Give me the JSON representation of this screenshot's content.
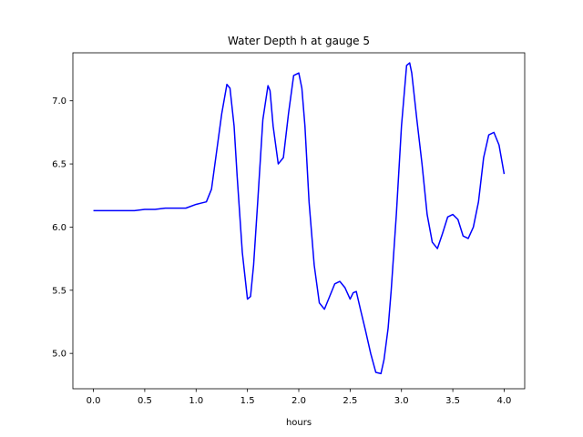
{
  "chart_data": {
    "type": "line",
    "title": "Water Depth h at gauge 5",
    "xlabel": "hours",
    "ylabel": "",
    "xlim": [
      -0.2,
      4.2
    ],
    "ylim": [
      4.72,
      7.38
    ],
    "grid": false,
    "xticks": [
      0.0,
      0.5,
      1.0,
      1.5,
      2.0,
      2.5,
      3.0,
      3.5,
      4.0
    ],
    "xtick_labels": [
      "0.0",
      "0.5",
      "1.0",
      "1.5",
      "2.0",
      "2.5",
      "3.0",
      "3.5",
      "4.0"
    ],
    "yticks": [
      5.0,
      5.5,
      6.0,
      6.5,
      7.0
    ],
    "ytick_labels": [
      "5.0",
      "5.5",
      "6.0",
      "6.5",
      "7.0"
    ],
    "series": [
      {
        "color": "#0000ff",
        "x": [
          0.0,
          0.2,
          0.4,
          0.5,
          0.6,
          0.7,
          0.8,
          0.9,
          1.0,
          1.05,
          1.1,
          1.15,
          1.2,
          1.25,
          1.3,
          1.33,
          1.37,
          1.4,
          1.45,
          1.5,
          1.53,
          1.56,
          1.6,
          1.65,
          1.7,
          1.72,
          1.75,
          1.8,
          1.85,
          1.9,
          1.95,
          2.0,
          2.03,
          2.06,
          2.1,
          2.15,
          2.2,
          2.25,
          2.3,
          2.35,
          2.4,
          2.45,
          2.5,
          2.53,
          2.56,
          2.6,
          2.65,
          2.7,
          2.75,
          2.8,
          2.83,
          2.87,
          2.9,
          2.95,
          3.0,
          3.05,
          3.08,
          3.1,
          3.15,
          3.2,
          3.25,
          3.3,
          3.35,
          3.4,
          3.45,
          3.5,
          3.55,
          3.6,
          3.65,
          3.7,
          3.75,
          3.8,
          3.85,
          3.9,
          3.95,
          4.0
        ],
        "y": [
          6.13,
          6.13,
          6.13,
          6.14,
          6.14,
          6.15,
          6.15,
          6.15,
          6.18,
          6.19,
          6.2,
          6.3,
          6.6,
          6.9,
          7.13,
          7.1,
          6.8,
          6.4,
          5.8,
          5.43,
          5.45,
          5.7,
          6.2,
          6.85,
          7.12,
          7.08,
          6.8,
          6.5,
          6.55,
          6.9,
          7.2,
          7.22,
          7.1,
          6.8,
          6.2,
          5.7,
          5.4,
          5.35,
          5.45,
          5.55,
          5.57,
          5.52,
          5.43,
          5.48,
          5.49,
          5.35,
          5.18,
          5.0,
          4.85,
          4.84,
          4.95,
          5.2,
          5.5,
          6.1,
          6.8,
          7.28,
          7.3,
          7.22,
          6.85,
          6.5,
          6.1,
          5.88,
          5.83,
          5.95,
          6.08,
          6.1,
          6.06,
          5.93,
          5.91,
          6.0,
          6.2,
          6.55,
          6.73,
          6.75,
          6.65,
          6.42
        ]
      }
    ]
  }
}
